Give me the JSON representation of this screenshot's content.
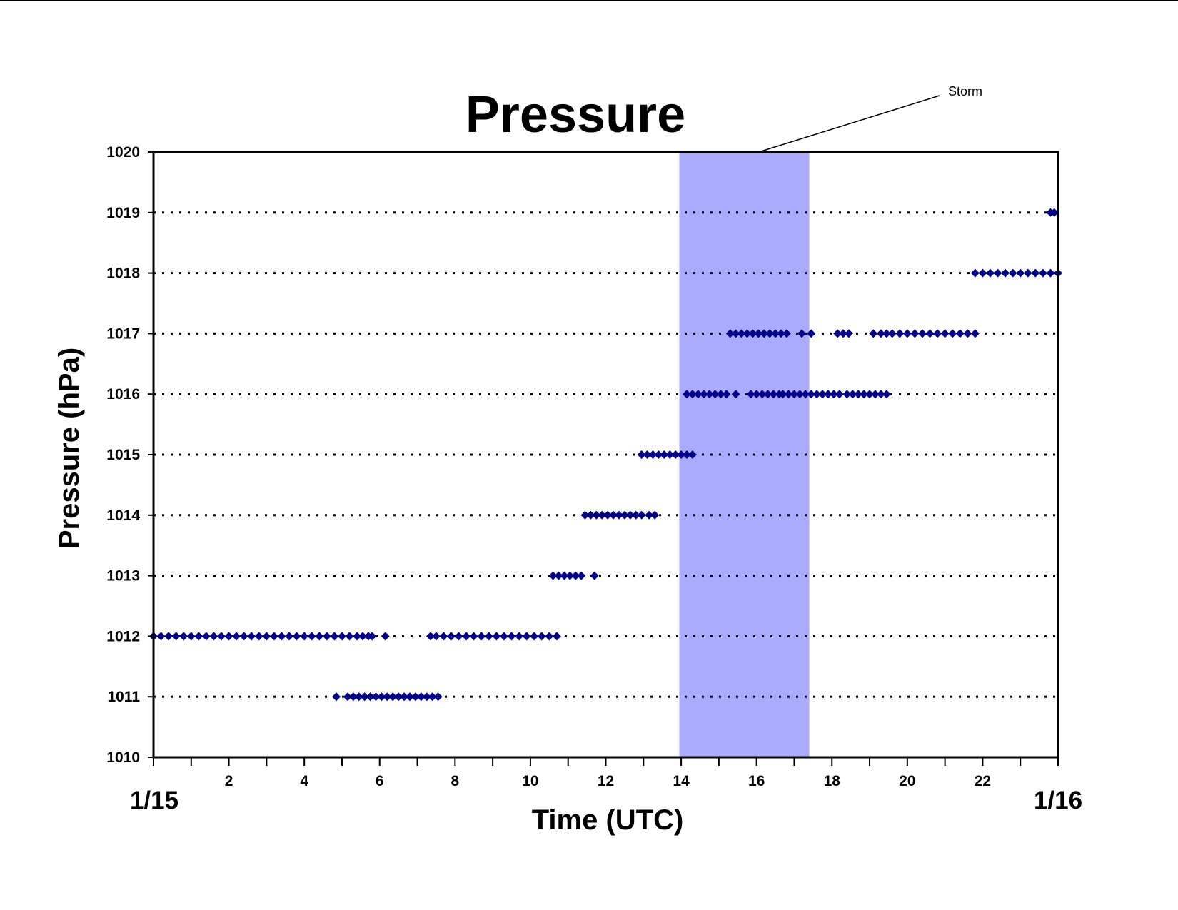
{
  "chart_data": {
    "type": "scatter",
    "title": "Pressure",
    "xlabel": "Time (UTC)",
    "ylabel": "Pressure (hPa)",
    "xlim": [
      0,
      24
    ],
    "ylim": [
      1010,
      1020
    ],
    "x_ticks": [
      2,
      4,
      6,
      8,
      10,
      12,
      14,
      16,
      18,
      20,
      22
    ],
    "x_tick_labels": [
      "2",
      "4",
      "6",
      "8",
      "10",
      "12",
      "14",
      "16",
      "18",
      "20",
      "22"
    ],
    "x_minor_ticks": [
      0,
      1,
      2,
      3,
      4,
      5,
      6,
      7,
      8,
      9,
      10,
      11,
      12,
      13,
      14,
      15,
      16,
      17,
      18,
      19,
      20,
      21,
      22,
      23,
      24
    ],
    "x_start_date": "1/15",
    "x_end_date": "1/16",
    "y_ticks": [
      1010,
      1011,
      1012,
      1013,
      1014,
      1015,
      1016,
      1017,
      1018,
      1019,
      1020
    ],
    "y_tick_labels": [
      "1010",
      "1011",
      "1012",
      "1013",
      "1014",
      "1015",
      "1016",
      "1017",
      "1018",
      "1019",
      "1020"
    ],
    "grid": "horizontal dotted",
    "highlight": {
      "label": "Storm",
      "x_start": 13.95,
      "x_end": 17.4,
      "color": "#aaaaff"
    },
    "series": [
      {
        "marker": "diamond",
        "color": "#00008b",
        "points": [
          [
            0.0,
            1012
          ],
          [
            0.2,
            1012
          ],
          [
            0.4,
            1012
          ],
          [
            0.6,
            1012
          ],
          [
            0.8,
            1012
          ],
          [
            1.0,
            1012
          ],
          [
            1.2,
            1012
          ],
          [
            1.4,
            1012
          ],
          [
            1.6,
            1012
          ],
          [
            1.8,
            1012
          ],
          [
            2.0,
            1012
          ],
          [
            2.2,
            1012
          ],
          [
            2.4,
            1012
          ],
          [
            2.6,
            1012
          ],
          [
            2.8,
            1012
          ],
          [
            3.0,
            1012
          ],
          [
            3.2,
            1012
          ],
          [
            3.4,
            1012
          ],
          [
            3.6,
            1012
          ],
          [
            3.8,
            1012
          ],
          [
            4.0,
            1012
          ],
          [
            4.2,
            1012
          ],
          [
            4.4,
            1012
          ],
          [
            4.6,
            1012
          ],
          [
            4.8,
            1012
          ],
          [
            5.0,
            1012
          ],
          [
            5.2,
            1012
          ],
          [
            5.4,
            1012
          ],
          [
            5.55,
            1012
          ],
          [
            5.7,
            1012
          ],
          [
            5.8,
            1012
          ],
          [
            6.15,
            1012
          ],
          [
            4.85,
            1011
          ],
          [
            5.15,
            1011
          ],
          [
            5.3,
            1011
          ],
          [
            5.45,
            1011
          ],
          [
            5.6,
            1011
          ],
          [
            5.75,
            1011
          ],
          [
            5.9,
            1011
          ],
          [
            6.05,
            1011
          ],
          [
            6.2,
            1011
          ],
          [
            6.35,
            1011
          ],
          [
            6.5,
            1011
          ],
          [
            6.65,
            1011
          ],
          [
            6.8,
            1011
          ],
          [
            6.95,
            1011
          ],
          [
            7.1,
            1011
          ],
          [
            7.25,
            1011
          ],
          [
            7.4,
            1011
          ],
          [
            7.55,
            1011
          ],
          [
            7.35,
            1012
          ],
          [
            7.5,
            1012
          ],
          [
            7.7,
            1012
          ],
          [
            7.9,
            1012
          ],
          [
            8.1,
            1012
          ],
          [
            8.3,
            1012
          ],
          [
            8.5,
            1012
          ],
          [
            8.7,
            1012
          ],
          [
            8.9,
            1012
          ],
          [
            9.1,
            1012
          ],
          [
            9.3,
            1012
          ],
          [
            9.5,
            1012
          ],
          [
            9.7,
            1012
          ],
          [
            9.9,
            1012
          ],
          [
            10.1,
            1012
          ],
          [
            10.3,
            1012
          ],
          [
            10.5,
            1012
          ],
          [
            10.7,
            1012
          ],
          [
            10.6,
            1013
          ],
          [
            10.75,
            1013
          ],
          [
            10.9,
            1013
          ],
          [
            11.05,
            1013
          ],
          [
            11.2,
            1013
          ],
          [
            11.35,
            1013
          ],
          [
            11.7,
            1013
          ],
          [
            11.45,
            1014
          ],
          [
            11.6,
            1014
          ],
          [
            11.75,
            1014
          ],
          [
            11.9,
            1014
          ],
          [
            12.05,
            1014
          ],
          [
            12.2,
            1014
          ],
          [
            12.35,
            1014
          ],
          [
            12.5,
            1014
          ],
          [
            12.65,
            1014
          ],
          [
            12.8,
            1014
          ],
          [
            12.95,
            1014
          ],
          [
            13.15,
            1014
          ],
          [
            13.3,
            1014
          ],
          [
            12.95,
            1015
          ],
          [
            13.1,
            1015
          ],
          [
            13.25,
            1015
          ],
          [
            13.4,
            1015
          ],
          [
            13.55,
            1015
          ],
          [
            13.7,
            1015
          ],
          [
            13.85,
            1015
          ],
          [
            14.0,
            1015
          ],
          [
            14.15,
            1015
          ],
          [
            14.3,
            1015
          ],
          [
            14.15,
            1016
          ],
          [
            14.3,
            1016
          ],
          [
            14.45,
            1016
          ],
          [
            14.6,
            1016
          ],
          [
            14.75,
            1016
          ],
          [
            14.9,
            1016
          ],
          [
            15.05,
            1016
          ],
          [
            15.2,
            1016
          ],
          [
            15.45,
            1016
          ],
          [
            15.85,
            1016
          ],
          [
            16.0,
            1016
          ],
          [
            16.15,
            1016
          ],
          [
            16.3,
            1016
          ],
          [
            16.45,
            1016
          ],
          [
            16.6,
            1016
          ],
          [
            16.7,
            1016
          ],
          [
            16.85,
            1016
          ],
          [
            17.0,
            1016
          ],
          [
            17.15,
            1016
          ],
          [
            17.3,
            1016
          ],
          [
            17.45,
            1016
          ],
          [
            17.6,
            1016
          ],
          [
            17.75,
            1016
          ],
          [
            17.9,
            1016
          ],
          [
            18.05,
            1016
          ],
          [
            18.2,
            1016
          ],
          [
            18.4,
            1016
          ],
          [
            18.55,
            1016
          ],
          [
            18.7,
            1016
          ],
          [
            18.85,
            1016
          ],
          [
            19.0,
            1016
          ],
          [
            19.15,
            1016
          ],
          [
            19.3,
            1016
          ],
          [
            19.45,
            1016
          ],
          [
            15.3,
            1017
          ],
          [
            15.45,
            1017
          ],
          [
            15.6,
            1017
          ],
          [
            15.75,
            1017
          ],
          [
            15.9,
            1017
          ],
          [
            16.05,
            1017
          ],
          [
            16.2,
            1017
          ],
          [
            16.35,
            1017
          ],
          [
            16.5,
            1017
          ],
          [
            16.65,
            1017
          ],
          [
            16.8,
            1017
          ],
          [
            17.2,
            1017
          ],
          [
            17.45,
            1017
          ],
          [
            18.15,
            1017
          ],
          [
            18.3,
            1017
          ],
          [
            18.45,
            1017
          ],
          [
            19.1,
            1017
          ],
          [
            19.3,
            1017
          ],
          [
            19.45,
            1017
          ],
          [
            19.6,
            1017
          ],
          [
            19.8,
            1017
          ],
          [
            20.0,
            1017
          ],
          [
            20.2,
            1017
          ],
          [
            20.4,
            1017
          ],
          [
            20.6,
            1017
          ],
          [
            20.8,
            1017
          ],
          [
            21.0,
            1017
          ],
          [
            21.2,
            1017
          ],
          [
            21.4,
            1017
          ],
          [
            21.6,
            1017
          ],
          [
            21.8,
            1017
          ],
          [
            21.8,
            1018
          ],
          [
            22.0,
            1018
          ],
          [
            22.2,
            1018
          ],
          [
            22.4,
            1018
          ],
          [
            22.6,
            1018
          ],
          [
            22.8,
            1018
          ],
          [
            23.0,
            1018
          ],
          [
            23.2,
            1018
          ],
          [
            23.4,
            1018
          ],
          [
            23.6,
            1018
          ],
          [
            23.8,
            1018
          ],
          [
            24.0,
            1018
          ],
          [
            23.8,
            1019
          ],
          [
            23.9,
            1019
          ]
        ]
      }
    ]
  }
}
